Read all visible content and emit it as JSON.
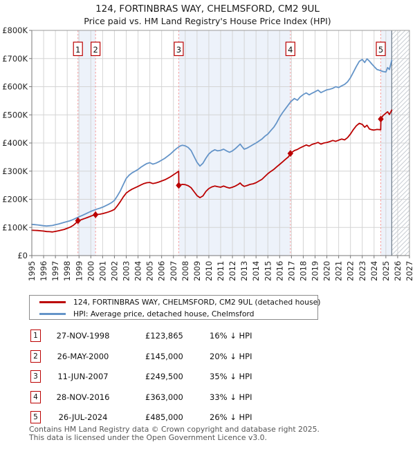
{
  "title": {
    "line1": "124, FORTINBRAS WAY, CHELMSFORD, CM2 9UL",
    "line2": "Price paid vs. HM Land Registry's House Price Index (HPI)"
  },
  "legend": [
    {
      "label": "124, FORTINBRAS WAY, CHELMSFORD, CM2 9UL (detached house)",
      "color": "#bb0000"
    },
    {
      "label": "HPI: Average price, detached house, Chelmsford",
      "color": "#6494c8"
    }
  ],
  "sales": [
    {
      "n": "1",
      "date": "27-NOV-1998",
      "price_label": "£123,865",
      "vs_hpi": "16% ↓ HPI",
      "year": 1998.91,
      "price_k": 123.865
    },
    {
      "n": "2",
      "date": "26-MAY-2000",
      "price_label": "£145,000",
      "vs_hpi": "20% ↓ HPI",
      "year": 2000.4,
      "price_k": 145
    },
    {
      "n": "3",
      "date": "11-JUN-2007",
      "price_label": "£249,500",
      "vs_hpi": "35% ↓ HPI",
      "year": 2007.45,
      "price_k": 249.5
    },
    {
      "n": "4",
      "date": "28-NOV-2016",
      "price_label": "£363,000",
      "vs_hpi": "33% ↓ HPI",
      "year": 2016.91,
      "price_k": 363
    },
    {
      "n": "5",
      "date": "26-JUL-2024",
      "price_label": "£485,000",
      "vs_hpi": "26% ↓ HPI",
      "year": 2024.57,
      "price_k": 485
    }
  ],
  "footer": {
    "line1": "Contains HM Land Registry data © Crown copyright and database right 2025.",
    "line2": "This data is licensed under the Open Government Licence v3.0."
  },
  "chart_data": {
    "type": "line",
    "unit": "GBP thousands",
    "x_axis": {
      "min": 1995,
      "max": 2027,
      "tick_years_from": 1995,
      "tick_years_to": 2027
    },
    "y_axis": {
      "min": 0,
      "max": 800,
      "tick_step": 100,
      "tick_labels": [
        "£0",
        "£100K",
        "£200K",
        "£300K",
        "£400K",
        "£500K",
        "£600K",
        "£700K",
        "£800K"
      ]
    },
    "bands": [
      [
        1998.91,
        2000.4
      ],
      [
        2007.45,
        2016.91
      ],
      [
        2024.57,
        2025.5
      ]
    ],
    "no_data_after": 2025.5,
    "colors": {
      "property": "#bb0000",
      "hpi": "#6494c8",
      "dashed": "#f59b9b",
      "band": "#edf2fa",
      "grid": "#d4d4d4",
      "hatch": "#c9ced4",
      "axis": "#777777",
      "border": "#9a9a9a",
      "hatch_edge": "#6e7b87"
    },
    "series": [
      {
        "name": "HPI: Average price, detached house, Chelmsford",
        "color": "#6494c8",
        "data_name": "hpi-line",
        "points": [
          [
            1995.0,
            111
          ],
          [
            1995.25,
            110
          ],
          [
            1995.5,
            109
          ],
          [
            1995.75,
            107.5
          ],
          [
            1996.0,
            106
          ],
          [
            1996.25,
            105
          ],
          [
            1996.5,
            106
          ],
          [
            1996.75,
            107
          ],
          [
            1997.0,
            110
          ],
          [
            1997.25,
            112
          ],
          [
            1997.5,
            115
          ],
          [
            1997.75,
            118
          ],
          [
            1998.0,
            121
          ],
          [
            1998.25,
            124
          ],
          [
            1998.5,
            128
          ],
          [
            1998.75,
            133
          ],
          [
            1999.0,
            138
          ],
          [
            1999.25,
            142
          ],
          [
            1999.5,
            147
          ],
          [
            1999.75,
            152
          ],
          [
            2000.0,
            157
          ],
          [
            2000.25,
            161
          ],
          [
            2000.5,
            165
          ],
          [
            2000.75,
            168
          ],
          [
            2001.0,
            172
          ],
          [
            2001.25,
            177
          ],
          [
            2001.5,
            182
          ],
          [
            2001.75,
            188
          ],
          [
            2002.0,
            196
          ],
          [
            2002.25,
            212
          ],
          [
            2002.5,
            230
          ],
          [
            2002.75,
            252
          ],
          [
            2003.0,
            274
          ],
          [
            2003.25,
            286
          ],
          [
            2003.5,
            294
          ],
          [
            2003.75,
            300
          ],
          [
            2004.0,
            306
          ],
          [
            2004.25,
            314
          ],
          [
            2004.5,
            321
          ],
          [
            2004.75,
            327
          ],
          [
            2005.0,
            330
          ],
          [
            2005.25,
            325
          ],
          [
            2005.5,
            328
          ],
          [
            2005.75,
            333
          ],
          [
            2006.0,
            339
          ],
          [
            2006.25,
            345
          ],
          [
            2006.5,
            353
          ],
          [
            2006.75,
            361
          ],
          [
            2007.0,
            371
          ],
          [
            2007.25,
            380
          ],
          [
            2007.45,
            386
          ],
          [
            2007.6,
            390
          ],
          [
            2007.75,
            392
          ],
          [
            2008.0,
            390
          ],
          [
            2008.25,
            384
          ],
          [
            2008.5,
            373
          ],
          [
            2008.75,
            352
          ],
          [
            2009.0,
            331
          ],
          [
            2009.25,
            318
          ],
          [
            2009.5,
            328
          ],
          [
            2009.75,
            346
          ],
          [
            2010.0,
            361
          ],
          [
            2010.25,
            370
          ],
          [
            2010.5,
            376
          ],
          [
            2010.75,
            372
          ],
          [
            2011.0,
            374
          ],
          [
            2011.25,
            378
          ],
          [
            2011.5,
            372
          ],
          [
            2011.75,
            367
          ],
          [
            2012.0,
            372
          ],
          [
            2012.25,
            380
          ],
          [
            2012.5,
            390
          ],
          [
            2012.65,
            396
          ],
          [
            2012.8,
            388
          ],
          [
            2013.0,
            378
          ],
          [
            2013.25,
            382
          ],
          [
            2013.5,
            388
          ],
          [
            2013.75,
            394
          ],
          [
            2014.0,
            400
          ],
          [
            2014.25,
            407
          ],
          [
            2014.5,
            414
          ],
          [
            2014.75,
            424
          ],
          [
            2015.0,
            432
          ],
          [
            2015.25,
            444
          ],
          [
            2015.5,
            456
          ],
          [
            2015.75,
            472
          ],
          [
            2016.0,
            492
          ],
          [
            2016.25,
            508
          ],
          [
            2016.5,
            522
          ],
          [
            2016.75,
            536
          ],
          [
            2016.91,
            545
          ],
          [
            2017.0,
            549
          ],
          [
            2017.25,
            558
          ],
          [
            2017.5,
            552
          ],
          [
            2017.75,
            564
          ],
          [
            2018.0,
            572
          ],
          [
            2018.25,
            578
          ],
          [
            2018.5,
            571
          ],
          [
            2018.75,
            577
          ],
          [
            2019.0,
            582
          ],
          [
            2019.25,
            588
          ],
          [
            2019.5,
            579
          ],
          [
            2019.75,
            584
          ],
          [
            2020.0,
            589
          ],
          [
            2020.25,
            591
          ],
          [
            2020.5,
            594
          ],
          [
            2020.75,
            600
          ],
          [
            2021.0,
            597
          ],
          [
            2021.25,
            603
          ],
          [
            2021.5,
            608
          ],
          [
            2021.75,
            617
          ],
          [
            2022.0,
            632
          ],
          [
            2022.25,
            652
          ],
          [
            2022.5,
            672
          ],
          [
            2022.75,
            690
          ],
          [
            2023.0,
            697
          ],
          [
            2023.2,
            686
          ],
          [
            2023.4,
            699
          ],
          [
            2023.6,
            691
          ],
          [
            2023.8,
            681
          ],
          [
            2024.0,
            672
          ],
          [
            2024.25,
            661
          ],
          [
            2024.5,
            658
          ],
          [
            2024.75,
            654
          ],
          [
            2025.0,
            652
          ],
          [
            2025.15,
            668
          ],
          [
            2025.3,
            661
          ],
          [
            2025.5,
            694
          ]
        ]
      },
      {
        "name": "124, FORTINBRAS WAY, CHELMSFORD, CM2 9UL (detached house)",
        "color": "#bb0000",
        "data_name": "property-price-line",
        "points": [
          [
            1995.0,
            90
          ],
          [
            1995.25,
            89.5
          ],
          [
            1995.5,
            89
          ],
          [
            1995.75,
            88
          ],
          [
            1996.0,
            87
          ],
          [
            1996.25,
            85.5
          ],
          [
            1996.5,
            85
          ],
          [
            1996.75,
            84
          ],
          [
            1997.0,
            86
          ],
          [
            1997.25,
            88
          ],
          [
            1997.5,
            90.5
          ],
          [
            1997.75,
            93
          ],
          [
            1998.0,
            97
          ],
          [
            1998.25,
            101
          ],
          [
            1998.5,
            107
          ],
          [
            1998.75,
            116
          ],
          [
            1998.91,
            123.9
          ],
          [
            1999.1,
            126
          ],
          [
            1999.3,
            129
          ],
          [
            1999.5,
            132
          ],
          [
            1999.75,
            136
          ],
          [
            2000.0,
            140
          ],
          [
            2000.2,
            143
          ],
          [
            2000.4,
            145
          ],
          [
            2000.5,
            146
          ],
          [
            2000.75,
            147
          ],
          [
            2001.0,
            149
          ],
          [
            2001.25,
            152
          ],
          [
            2001.5,
            155
          ],
          [
            2001.75,
            159
          ],
          [
            2002.0,
            164
          ],
          [
            2002.25,
            177
          ],
          [
            2002.5,
            192
          ],
          [
            2002.75,
            208
          ],
          [
            2003.0,
            222
          ],
          [
            2003.25,
            230
          ],
          [
            2003.5,
            236
          ],
          [
            2003.75,
            241
          ],
          [
            2004.0,
            246
          ],
          [
            2004.25,
            251
          ],
          [
            2004.5,
            256
          ],
          [
            2004.75,
            259
          ],
          [
            2005.0,
            260
          ],
          [
            2005.25,
            256
          ],
          [
            2005.5,
            258
          ],
          [
            2005.75,
            261
          ],
          [
            2006.0,
            265
          ],
          [
            2006.25,
            269
          ],
          [
            2006.5,
            274
          ],
          [
            2006.75,
            280
          ],
          [
            2007.0,
            287
          ],
          [
            2007.25,
            294
          ],
          [
            2007.44,
            300
          ],
          [
            2007.46,
            249.5
          ],
          [
            2007.6,
            251
          ],
          [
            2007.75,
            253
          ],
          [
            2008.0,
            252
          ],
          [
            2008.25,
            248
          ],
          [
            2008.5,
            241
          ],
          [
            2008.75,
            227
          ],
          [
            2009.0,
            213
          ],
          [
            2009.25,
            206
          ],
          [
            2009.5,
            212
          ],
          [
            2009.75,
            228
          ],
          [
            2010.0,
            238
          ],
          [
            2010.25,
            244
          ],
          [
            2010.5,
            247
          ],
          [
            2010.75,
            245
          ],
          [
            2011.0,
            243
          ],
          [
            2011.25,
            247
          ],
          [
            2011.5,
            243
          ],
          [
            2011.75,
            240
          ],
          [
            2012.0,
            243
          ],
          [
            2012.25,
            247
          ],
          [
            2012.5,
            253
          ],
          [
            2012.65,
            258
          ],
          [
            2012.8,
            251
          ],
          [
            2013.0,
            246
          ],
          [
            2013.25,
            249
          ],
          [
            2013.5,
            253
          ],
          [
            2013.75,
            255
          ],
          [
            2014.0,
            259
          ],
          [
            2014.25,
            265
          ],
          [
            2014.5,
            271
          ],
          [
            2014.75,
            281
          ],
          [
            2015.0,
            291
          ],
          [
            2015.25,
            299
          ],
          [
            2015.5,
            306
          ],
          [
            2015.75,
            315
          ],
          [
            2016.0,
            324
          ],
          [
            2016.25,
            333
          ],
          [
            2016.5,
            342
          ],
          [
            2016.75,
            351
          ],
          [
            2016.91,
            363
          ],
          [
            2017.0,
            366
          ],
          [
            2017.25,
            373
          ],
          [
            2017.5,
            377
          ],
          [
            2017.75,
            383
          ],
          [
            2018.0,
            388
          ],
          [
            2018.25,
            393
          ],
          [
            2018.5,
            389
          ],
          [
            2018.75,
            395
          ],
          [
            2019.0,
            398
          ],
          [
            2019.25,
            402
          ],
          [
            2019.5,
            396
          ],
          [
            2019.75,
            400
          ],
          [
            2020.0,
            402
          ],
          [
            2020.25,
            405
          ],
          [
            2020.5,
            409
          ],
          [
            2020.75,
            406
          ],
          [
            2021.0,
            410
          ],
          [
            2021.25,
            414
          ],
          [
            2021.5,
            411
          ],
          [
            2021.75,
            419
          ],
          [
            2022.0,
            432
          ],
          [
            2022.25,
            448
          ],
          [
            2022.5,
            461
          ],
          [
            2022.75,
            470
          ],
          [
            2023.0,
            466
          ],
          [
            2023.2,
            456
          ],
          [
            2023.4,
            463
          ],
          [
            2023.6,
            450
          ],
          [
            2023.8,
            447
          ],
          [
            2024.0,
            446
          ],
          [
            2024.25,
            448
          ],
          [
            2024.56,
            447
          ],
          [
            2024.58,
            485
          ],
          [
            2024.75,
            497
          ],
          [
            2025.0,
            506
          ],
          [
            2025.15,
            511
          ],
          [
            2025.3,
            501
          ],
          [
            2025.5,
            517
          ]
        ]
      }
    ]
  }
}
